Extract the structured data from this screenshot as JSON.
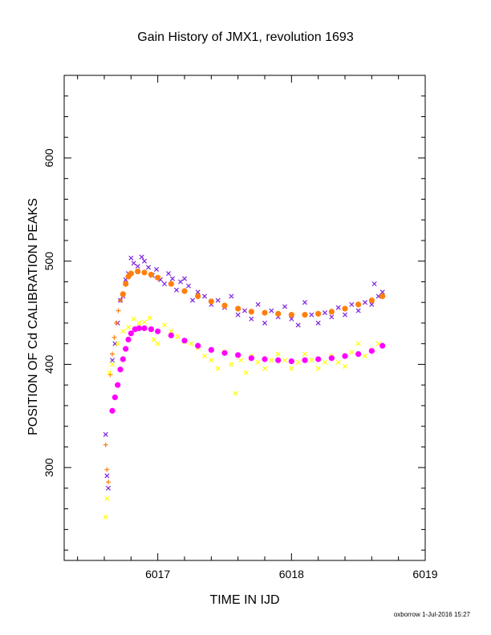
{
  "chart_data": {
    "type": "scatter",
    "title": "Gain History of JMX1, revolution 1693",
    "xlabel": "TIME IN IJD",
    "ylabel": "POSITION OF Cd CALIBRATION PEAKS",
    "xlim": [
      6016.3,
      6019.0
    ],
    "ylim": [
      210,
      680
    ],
    "x_ticks": [
      "6017",
      "6018",
      "6019"
    ],
    "y_ticks": [
      "300",
      "400",
      "500",
      "600"
    ],
    "grid": false,
    "series": [
      {
        "marker": "x",
        "color": "#7b22e0",
        "points": [
          [
            6016.61,
            332
          ],
          [
            6016.62,
            292
          ],
          [
            6016.63,
            280
          ],
          [
            6016.66,
            404
          ],
          [
            6016.68,
            420
          ],
          [
            6016.7,
            440
          ],
          [
            6016.72,
            462
          ],
          [
            6016.74,
            466
          ],
          [
            6016.76,
            482
          ],
          [
            6016.78,
            488
          ],
          [
            6016.8,
            503
          ],
          [
            6016.82,
            498
          ],
          [
            6016.85,
            495
          ],
          [
            6016.88,
            504
          ],
          [
            6016.9,
            500
          ],
          [
            6016.93,
            494
          ],
          [
            6016.96,
            486
          ],
          [
            6016.99,
            492
          ],
          [
            6017.02,
            482
          ],
          [
            6017.05,
            478
          ],
          [
            6017.08,
            488
          ],
          [
            6017.11,
            483
          ],
          [
            6017.14,
            472
          ],
          [
            6017.17,
            480
          ],
          [
            6017.2,
            483
          ],
          [
            6017.23,
            476
          ],
          [
            6017.26,
            462
          ],
          [
            6017.3,
            470
          ],
          [
            6017.35,
            466
          ],
          [
            6017.4,
            458
          ],
          [
            6017.45,
            462
          ],
          [
            6017.5,
            455
          ],
          [
            6017.55,
            466
          ],
          [
            6017.6,
            448
          ],
          [
            6017.65,
            452
          ],
          [
            6017.7,
            444
          ],
          [
            6017.75,
            458
          ],
          [
            6017.8,
            440
          ],
          [
            6017.85,
            452
          ],
          [
            6017.9,
            446
          ],
          [
            6017.95,
            456
          ],
          [
            6018.0,
            444
          ],
          [
            6018.05,
            438
          ],
          [
            6018.1,
            460
          ],
          [
            6018.15,
            448
          ],
          [
            6018.2,
            440
          ],
          [
            6018.25,
            450
          ],
          [
            6018.3,
            446
          ],
          [
            6018.35,
            455
          ],
          [
            6018.4,
            448
          ],
          [
            6018.45,
            458
          ],
          [
            6018.5,
            452
          ],
          [
            6018.55,
            460
          ],
          [
            6018.6,
            458
          ],
          [
            6018.62,
            478
          ],
          [
            6018.65,
            466
          ],
          [
            6018.68,
            470
          ]
        ]
      },
      {
        "marker": "+",
        "color": "#ff7f0e",
        "points": [
          [
            6016.61,
            322
          ],
          [
            6016.62,
            298
          ],
          [
            6016.63,
            286
          ],
          [
            6016.645,
            390
          ],
          [
            6016.66,
            410
          ],
          [
            6016.675,
            426
          ],
          [
            6016.69,
            440
          ],
          [
            6016.705,
            452
          ],
          [
            6016.72,
            462
          ],
          [
            6016.735,
            468
          ]
        ]
      },
      {
        "marker": "o",
        "color": "#ff7f0e",
        "points": [
          [
            6016.74,
            468
          ],
          [
            6016.76,
            478
          ],
          [
            6016.78,
            485
          ],
          [
            6016.8,
            488
          ],
          [
            6016.85,
            490
          ],
          [
            6016.9,
            489
          ],
          [
            6016.95,
            487
          ],
          [
            6017.0,
            484
          ],
          [
            6017.1,
            478
          ],
          [
            6017.2,
            471
          ],
          [
            6017.3,
            466
          ],
          [
            6017.4,
            461
          ],
          [
            6017.5,
            457
          ],
          [
            6017.6,
            454
          ],
          [
            6017.7,
            451
          ],
          [
            6017.8,
            450
          ],
          [
            6017.9,
            449
          ],
          [
            6018.0,
            448
          ],
          [
            6018.1,
            448
          ],
          [
            6018.2,
            449
          ],
          [
            6018.3,
            451
          ],
          [
            6018.4,
            454
          ],
          [
            6018.5,
            458
          ],
          [
            6018.6,
            462
          ],
          [
            6018.68,
            466
          ]
        ]
      },
      {
        "marker": "x",
        "color": "#ffff00",
        "points": [
          [
            6016.61,
            252
          ],
          [
            6016.62,
            270
          ],
          [
            6016.64,
            392
          ],
          [
            6016.66,
            400
          ],
          [
            6016.7,
            420
          ],
          [
            6016.74,
            432
          ],
          [
            6016.78,
            436
          ],
          [
            6016.82,
            444
          ],
          [
            6016.86,
            440
          ],
          [
            6016.9,
            441
          ],
          [
            6016.94,
            445
          ],
          [
            6016.97,
            424
          ],
          [
            6017.0,
            420
          ],
          [
            6017.05,
            438
          ],
          [
            6017.1,
            432
          ],
          [
            6017.15,
            427
          ],
          [
            6017.2,
            422
          ],
          [
            6017.25,
            420
          ],
          [
            6017.3,
            416
          ],
          [
            6017.35,
            408
          ],
          [
            6017.4,
            404
          ],
          [
            6017.45,
            396
          ],
          [
            6017.5,
            412
          ],
          [
            6017.55,
            400
          ],
          [
            6017.58,
            372
          ],
          [
            6017.62,
            404
          ],
          [
            6017.66,
            392
          ],
          [
            6017.7,
            408
          ],
          [
            6017.75,
            402
          ],
          [
            6017.8,
            396
          ],
          [
            6017.85,
            404
          ],
          [
            6017.9,
            410
          ],
          [
            6017.95,
            404
          ],
          [
            6018.0,
            396
          ],
          [
            6018.05,
            402
          ],
          [
            6018.1,
            410
          ],
          [
            6018.15,
            404
          ],
          [
            6018.2,
            396
          ],
          [
            6018.25,
            402
          ],
          [
            6018.3,
            408
          ],
          [
            6018.35,
            402
          ],
          [
            6018.4,
            398
          ],
          [
            6018.45,
            412
          ],
          [
            6018.5,
            420
          ],
          [
            6018.55,
            408
          ],
          [
            6018.6,
            414
          ],
          [
            6018.65,
            420
          ]
        ]
      },
      {
        "marker": "o",
        "color": "#ff00ff",
        "points": [
          [
            6016.66,
            355
          ],
          [
            6016.68,
            368
          ],
          [
            6016.7,
            380
          ],
          [
            6016.72,
            395
          ],
          [
            6016.74,
            405
          ],
          [
            6016.76,
            415
          ],
          [
            6016.78,
            424
          ],
          [
            6016.8,
            430
          ],
          [
            6016.83,
            434
          ],
          [
            6016.86,
            435
          ],
          [
            6016.9,
            435
          ],
          [
            6016.95,
            434
          ],
          [
            6017.0,
            432
          ],
          [
            6017.1,
            428
          ],
          [
            6017.2,
            423
          ],
          [
            6017.3,
            418
          ],
          [
            6017.4,
            414
          ],
          [
            6017.5,
            411
          ],
          [
            6017.6,
            409
          ],
          [
            6017.7,
            406
          ],
          [
            6017.8,
            405
          ],
          [
            6017.9,
            404
          ],
          [
            6018.0,
            403
          ],
          [
            6018.1,
            404
          ],
          [
            6018.2,
            405
          ],
          [
            6018.3,
            406
          ],
          [
            6018.4,
            408
          ],
          [
            6018.5,
            410
          ],
          [
            6018.6,
            413
          ],
          [
            6018.68,
            418
          ]
        ]
      }
    ]
  },
  "footer": "oxborrow   1-Jul-2016 15:27"
}
